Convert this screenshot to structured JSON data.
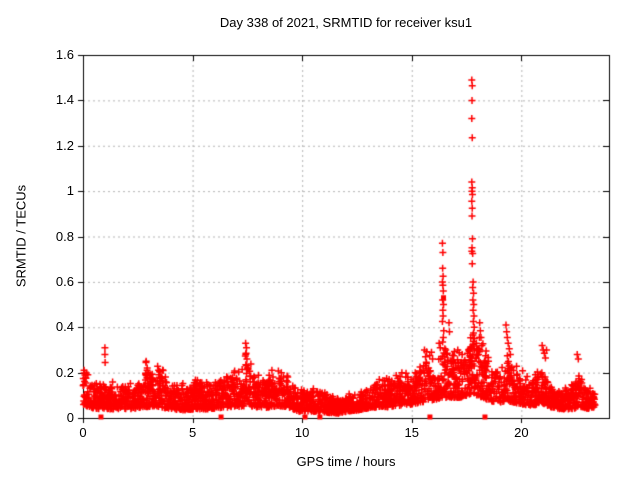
{
  "chart_data": {
    "type": "scatter",
    "title": "Day 338 of 2021, SRMTID for receiver ksu1",
    "xlabel": "GPS time / hours",
    "ylabel": "SRMTID / TECUs",
    "xlim": [
      0,
      24
    ],
    "ylim": [
      0,
      1.6
    ],
    "xticks": {
      "values": [
        0,
        5,
        10,
        15,
        20
      ],
      "labels": [
        "0",
        "5",
        "10",
        "15",
        "20"
      ]
    },
    "yticks": {
      "values": [
        0,
        0.2,
        0.4,
        0.6,
        0.8,
        1.0,
        1.2,
        1.4,
        1.6
      ],
      "labels": [
        "0",
        "0.2",
        "0.4",
        "0.6",
        "0.8",
        "1",
        "1.2",
        "1.4",
        "1.6"
      ]
    },
    "grid": {
      "show": true,
      "color": "#b4b4b4",
      "dash": [
        2,
        3
      ]
    },
    "axis_color": "#000000",
    "marker": {
      "symbol": "+",
      "color": "#ff0000",
      "size": 7
    },
    "series": [
      {
        "name": "srmtid-baseline-noise",
        "kind": "generated-noise",
        "seed": 20211338,
        "x_start": 0.01,
        "x_end": 23.38,
        "x_step": 0.0155,
        "envelope": [
          [
            0.0,
            0.06,
            0.21
          ],
          [
            0.25,
            0.05,
            0.17
          ],
          [
            0.6,
            0.04,
            0.14
          ],
          [
            1.1,
            0.04,
            0.14
          ],
          [
            1.6,
            0.04,
            0.13
          ],
          [
            2.2,
            0.04,
            0.13
          ],
          [
            2.75,
            0.05,
            0.18
          ],
          [
            2.95,
            0.05,
            0.24
          ],
          [
            3.15,
            0.05,
            0.18
          ],
          [
            3.4,
            0.05,
            0.2
          ],
          [
            4.0,
            0.04,
            0.15
          ],
          [
            4.6,
            0.035,
            0.13
          ],
          [
            5.2,
            0.04,
            0.15
          ],
          [
            5.8,
            0.04,
            0.14
          ],
          [
            6.3,
            0.045,
            0.16
          ],
          [
            6.9,
            0.05,
            0.19
          ],
          [
            7.2,
            0.05,
            0.17
          ],
          [
            7.45,
            0.055,
            0.25
          ],
          [
            7.8,
            0.05,
            0.17
          ],
          [
            8.3,
            0.045,
            0.16
          ],
          [
            8.65,
            0.05,
            0.19
          ],
          [
            9.1,
            0.05,
            0.19
          ],
          [
            9.45,
            0.045,
            0.16
          ],
          [
            9.8,
            0.03,
            0.11
          ],
          [
            10.3,
            0.03,
            0.11
          ],
          [
            10.7,
            0.03,
            0.13
          ],
          [
            11.1,
            0.025,
            0.1
          ],
          [
            11.6,
            0.02,
            0.08
          ],
          [
            12.1,
            0.03,
            0.09
          ],
          [
            12.6,
            0.035,
            0.11
          ],
          [
            13.1,
            0.045,
            0.13
          ],
          [
            13.55,
            0.05,
            0.16
          ],
          [
            14.0,
            0.05,
            0.15
          ],
          [
            14.5,
            0.055,
            0.17
          ],
          [
            15.0,
            0.06,
            0.17
          ],
          [
            15.45,
            0.07,
            0.22
          ],
          [
            15.75,
            0.075,
            0.26
          ],
          [
            16.05,
            0.08,
            0.23
          ],
          [
            16.35,
            0.09,
            0.3
          ],
          [
            16.6,
            0.09,
            0.28
          ],
          [
            16.9,
            0.09,
            0.26
          ],
          [
            17.2,
            0.09,
            0.25
          ],
          [
            17.5,
            0.1,
            0.28
          ],
          [
            17.75,
            0.11,
            0.35
          ],
          [
            18.0,
            0.1,
            0.32
          ],
          [
            18.25,
            0.09,
            0.28
          ],
          [
            18.6,
            0.075,
            0.22
          ],
          [
            19.0,
            0.07,
            0.2
          ],
          [
            19.35,
            0.075,
            0.26
          ],
          [
            19.6,
            0.07,
            0.22
          ],
          [
            20.0,
            0.06,
            0.18
          ],
          [
            20.5,
            0.055,
            0.16
          ],
          [
            20.95,
            0.065,
            0.22
          ],
          [
            21.3,
            0.05,
            0.14
          ],
          [
            21.8,
            0.04,
            0.12
          ],
          [
            22.3,
            0.04,
            0.13
          ],
          [
            22.7,
            0.05,
            0.17
          ],
          [
            23.05,
            0.04,
            0.12
          ],
          [
            23.38,
            0.05,
            0.11
          ]
        ]
      },
      {
        "name": "srmtid-spike-points",
        "kind": "points",
        "points": [
          [
            0.05,
            0.21
          ],
          [
            0.09,
            0.19
          ],
          [
            0.13,
            0.175
          ],
          [
            1.0,
            0.31
          ],
          [
            1.0,
            0.28
          ],
          [
            1.01,
            0.245
          ],
          [
            2.88,
            0.25
          ],
          [
            2.93,
            0.22
          ],
          [
            3.45,
            0.21
          ],
          [
            6.9,
            0.2
          ],
          [
            7.42,
            0.33
          ],
          [
            7.46,
            0.31
          ],
          [
            7.44,
            0.285
          ],
          [
            7.48,
            0.26
          ],
          [
            7.43,
            0.235
          ],
          [
            7.5,
            0.22
          ],
          [
            8.62,
            0.21
          ],
          [
            9.05,
            0.2
          ],
          [
            13.52,
            0.17
          ],
          [
            14.55,
            0.2
          ],
          [
            15.58,
            0.3
          ],
          [
            15.63,
            0.27
          ],
          [
            15.9,
            0.29
          ],
          [
            15.95,
            0.26
          ],
          [
            16.4,
            0.77
          ],
          [
            16.42,
            0.73
          ],
          [
            16.41,
            0.66
          ],
          [
            16.43,
            0.625
          ],
          [
            16.4,
            0.6
          ],
          [
            16.42,
            0.585
          ],
          [
            16.44,
            0.56
          ],
          [
            16.41,
            0.52
          ],
          [
            16.45,
            0.5
          ],
          [
            16.42,
            0.475
          ],
          [
            16.43,
            0.45
          ],
          [
            16.4,
            0.425
          ],
          [
            16.46,
            0.385
          ],
          [
            16.44,
            0.355
          ],
          [
            16.25,
            0.33
          ],
          [
            16.3,
            0.31
          ],
          [
            16.55,
            0.3
          ],
          [
            16.62,
            0.285
          ],
          [
            16.7,
            0.42
          ],
          [
            16.72,
            0.38
          ],
          [
            17.1,
            0.3
          ],
          [
            17.3,
            0.28
          ],
          [
            17.74,
            1.49
          ],
          [
            17.76,
            1.465
          ],
          [
            17.75,
            1.4
          ],
          [
            17.74,
            1.32
          ],
          [
            17.76,
            1.235
          ],
          [
            17.74,
            1.04
          ],
          [
            17.76,
            1.015
          ],
          [
            17.75,
            1.0
          ],
          [
            17.77,
            0.985
          ],
          [
            17.74,
            0.955
          ],
          [
            17.76,
            0.925
          ],
          [
            17.75,
            0.89
          ],
          [
            17.77,
            0.79
          ],
          [
            17.75,
            0.75
          ],
          [
            17.74,
            0.735
          ],
          [
            17.78,
            0.725
          ],
          [
            17.76,
            0.68
          ],
          [
            17.8,
            0.6
          ],
          [
            17.78,
            0.575
          ],
          [
            17.82,
            0.55
          ],
          [
            17.79,
            0.52
          ],
          [
            17.83,
            0.5
          ],
          [
            17.8,
            0.475
          ],
          [
            17.84,
            0.45
          ],
          [
            17.81,
            0.425
          ],
          [
            17.85,
            0.4
          ],
          [
            17.82,
            0.375
          ],
          [
            17.86,
            0.35
          ],
          [
            17.83,
            0.325
          ],
          [
            17.87,
            0.3
          ],
          [
            17.6,
            0.3
          ],
          [
            17.65,
            0.275
          ],
          [
            17.95,
            0.33
          ],
          [
            18.0,
            0.305
          ],
          [
            18.05,
            0.28
          ],
          [
            18.1,
            0.42
          ],
          [
            18.13,
            0.385
          ],
          [
            18.16,
            0.355
          ],
          [
            18.2,
            0.32
          ],
          [
            19.3,
            0.41
          ],
          [
            19.33,
            0.38
          ],
          [
            19.36,
            0.355
          ],
          [
            19.4,
            0.33
          ],
          [
            19.45,
            0.305
          ],
          [
            19.5,
            0.28
          ],
          [
            20.95,
            0.32
          ],
          [
            21.0,
            0.3
          ],
          [
            21.05,
            0.285
          ],
          [
            21.1,
            0.265
          ],
          [
            21.15,
            0.3
          ],
          [
            22.55,
            0.28
          ],
          [
            22.6,
            0.26
          ],
          [
            22.75,
            0.17
          ]
        ]
      },
      {
        "name": "event-squares",
        "kind": "points",
        "symbol": "filled-square",
        "points": [
          [
            0.82,
            0
          ],
          [
            6.3,
            0
          ],
          [
            10.13,
            0
          ],
          [
            10.81,
            0
          ],
          [
            15.83,
            0
          ],
          [
            18.34,
            0
          ],
          [
            16.45,
            0.53
          ]
        ]
      }
    ]
  }
}
